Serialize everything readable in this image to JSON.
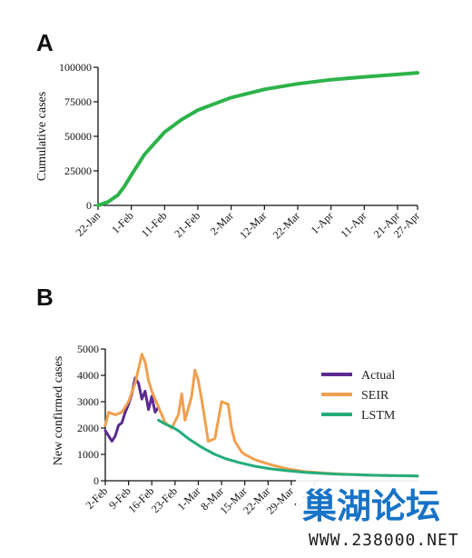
{
  "chart_data": [
    {
      "panel": "A",
      "type": "line",
      "ylabel": "Cumulative cases",
      "xlabel": "",
      "x_categories": [
        "22-Jan",
        "1-Feb",
        "11-Feb",
        "21-Feb",
        "2-Mar",
        "12-Mar",
        "22-Mar",
        "1-Apr",
        "11-Apr",
        "21-Apr",
        "27-Apr"
      ],
      "y_ticks": [
        "0",
        "25000",
        "50000",
        "75000",
        "100000"
      ],
      "ylim": [
        0,
        100000
      ],
      "grid": false,
      "series": [
        {
          "color": "#2db34a",
          "x_days": [
            0,
            3,
            6,
            8,
            10,
            14,
            20,
            25,
            30,
            40,
            50,
            60,
            70,
            80,
            90,
            96
          ],
          "values": [
            0,
            2500,
            7500,
            14000,
            22000,
            37000,
            53000,
            62000,
            69000,
            78000,
            84000,
            88000,
            91000,
            93000,
            94800,
            96000
          ]
        }
      ]
    },
    {
      "panel": "B",
      "type": "line",
      "ylabel": "New confirmed cases",
      "xlabel": "",
      "x_categories": [
        "2-Feb",
        "9-Feb",
        "16-Feb",
        "23-Feb",
        "1-Mar",
        "8-Mar",
        "15-Mar",
        "22-Mar",
        "29-Mar",
        "5-Apr"
      ],
      "y_ticks": [
        "0",
        "1000",
        "2000",
        "3000",
        "4000",
        "5000"
      ],
      "ylim": [
        0,
        5000
      ],
      "grid": false,
      "legend_position": "right",
      "series": [
        {
          "name": "Actual",
          "color": "#5b2a91",
          "x_days": [
            0,
            1,
            2,
            3,
            4,
            5,
            6,
            7,
            8,
            9,
            10,
            11,
            12,
            13,
            14,
            15,
            16
          ],
          "values": [
            1900,
            1700,
            1500,
            1700,
            2100,
            2200,
            2600,
            2900,
            3300,
            3900,
            3700,
            3100,
            3400,
            2700,
            3200,
            2600,
            2800
          ]
        },
        {
          "name": "SEIR",
          "color": "#f0a050",
          "x_days": [
            0,
            1,
            3,
            5,
            7,
            9,
            11,
            12,
            13,
            14,
            16,
            18,
            20,
            22,
            23,
            24,
            26,
            27,
            28,
            29,
            30,
            31,
            33,
            35,
            37,
            38,
            39,
            40,
            41,
            42,
            45,
            50,
            55,
            60,
            65,
            70,
            75,
            80,
            85,
            90,
            94
          ],
          "values": [
            2100,
            2600,
            2500,
            2600,
            3000,
            3700,
            4800,
            4500,
            3800,
            3400,
            2800,
            2200,
            2000,
            2500,
            3300,
            2300,
            3200,
            4200,
            3800,
            3100,
            2300,
            1500,
            1600,
            3000,
            2900,
            2000,
            1500,
            1300,
            1100,
            1000,
            800,
            600,
            450,
            350,
            300,
            260,
            230,
            210,
            200,
            190,
            180
          ]
        },
        {
          "name": "LSTM",
          "color": "#24ad7a",
          "x_days": [
            16,
            18,
            20,
            22,
            25,
            28,
            30,
            33,
            36,
            40,
            45,
            50,
            55,
            60,
            65,
            70,
            75,
            80,
            85,
            90,
            94
          ],
          "values": [
            2300,
            2150,
            2050,
            1900,
            1600,
            1350,
            1200,
            1000,
            850,
            700,
            550,
            450,
            380,
            320,
            280,
            250,
            230,
            210,
            200,
            190,
            180
          ]
        }
      ]
    }
  ],
  "panels": {
    "a_letter": "A",
    "b_letter": "B"
  },
  "watermark": {
    "cn_text": "巢湖论坛",
    "url_text": "WWW.238000.NET"
  }
}
